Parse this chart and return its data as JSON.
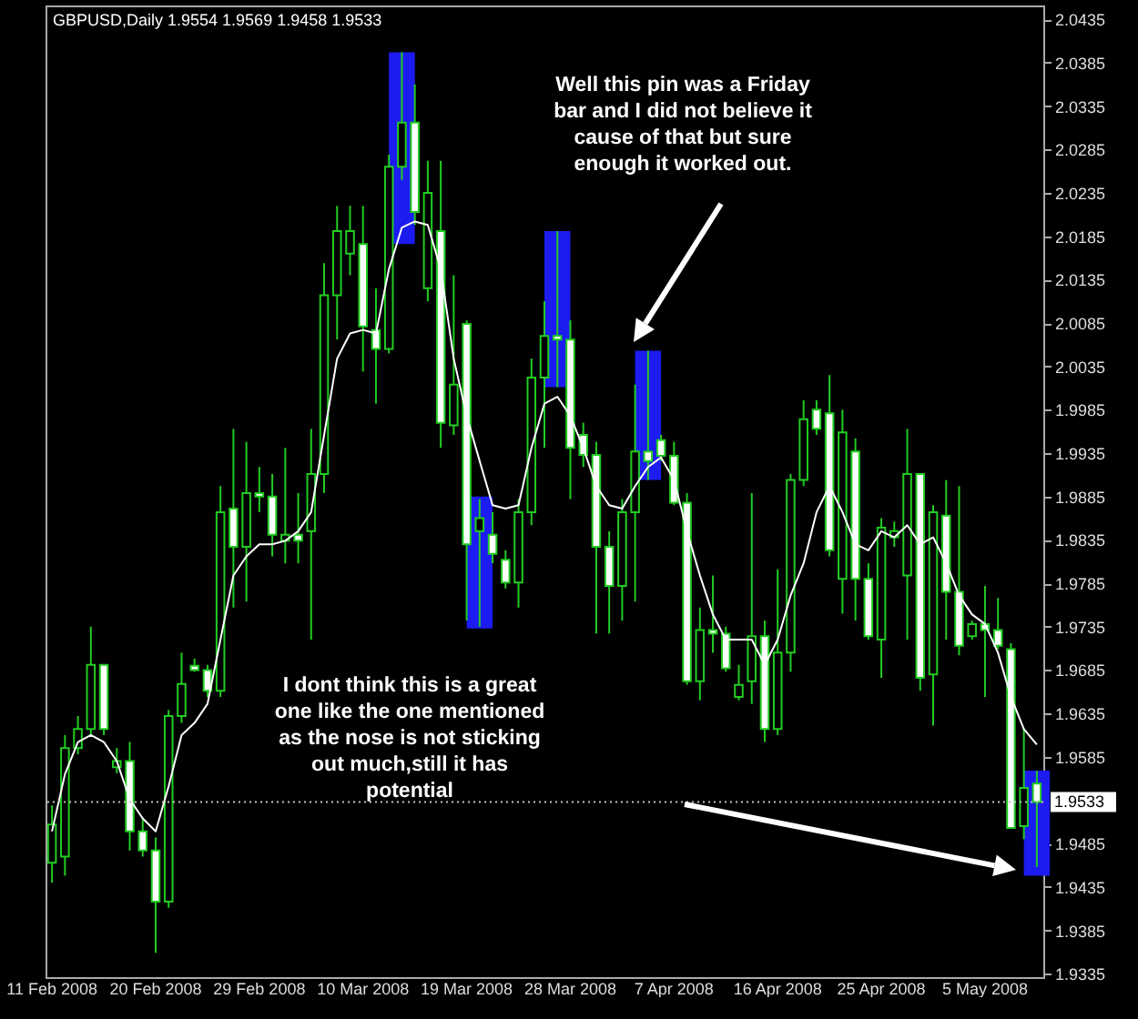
{
  "chart_data": {
    "type": "candlestick",
    "title": "GBPUSD,Daily  1.9554 1.9569 1.9458 1.9533",
    "categories": [
      "11 Feb 2008",
      null,
      null,
      null,
      null,
      null,
      null,
      null,
      "20 Feb 2008",
      null,
      null,
      null,
      null,
      null,
      null,
      null,
      "29 Feb 2008",
      null,
      null,
      null,
      null,
      null,
      null,
      null,
      "10 Mar 2008",
      null,
      null,
      null,
      null,
      null,
      null,
      null,
      "19 Mar 2008",
      null,
      null,
      null,
      null,
      null,
      null,
      null,
      "28 Mar 2008",
      null,
      null,
      null,
      null,
      null,
      null,
      null,
      "7 Apr 2008",
      null,
      null,
      null,
      null,
      null,
      null,
      null,
      "16 Apr 2008",
      null,
      null,
      null,
      null,
      null,
      null,
      null,
      "25 Apr 2008",
      null,
      null,
      null,
      null,
      null,
      null,
      null,
      "5 May 2008",
      null,
      null,
      null,
      null
    ],
    "ohlc": [
      [
        1.9463,
        1.9529,
        1.944,
        1.9507
      ],
      [
        1.947,
        1.961,
        1.9448,
        1.9595
      ],
      [
        1.9595,
        1.9632,
        1.9588,
        1.9617
      ],
      [
        1.9617,
        1.9735,
        1.961,
        1.9691
      ],
      [
        1.9691,
        1.9691,
        1.961,
        1.9617
      ],
      [
        1.9573,
        1.9595,
        1.9566,
        1.958
      ],
      [
        1.958,
        1.9602,
        1.9477,
        1.9499
      ],
      [
        1.9499,
        1.9514,
        1.947,
        1.9477
      ],
      [
        1.9477,
        1.9492,
        1.9359,
        1.9418
      ],
      [
        1.9418,
        1.9639,
        1.9411,
        1.9632
      ],
      [
        1.9632,
        1.9705,
        1.9624,
        1.9669
      ],
      [
        1.969,
        1.9698,
        1.9683,
        1.9685
      ],
      [
        1.9685,
        1.9691,
        1.9654,
        1.9661
      ],
      [
        1.9661,
        1.9897,
        1.9654,
        1.9867
      ],
      [
        1.9871,
        1.9963,
        1.9757,
        1.9827
      ],
      [
        1.9827,
        1.9948,
        1.9764,
        1.9889
      ],
      [
        1.9889,
        1.9919,
        1.9867,
        1.9885
      ],
      [
        1.9885,
        1.9911,
        1.9816,
        1.9841
      ],
      [
        1.9834,
        1.9941,
        1.9808,
        1.9841
      ],
      [
        1.9841,
        1.9889,
        1.9808,
        1.9834
      ],
      [
        1.9845,
        1.9963,
        1.972,
        1.9911
      ],
      [
        1.9911,
        2.0154,
        1.9889,
        2.0117
      ],
      [
        2.0117,
        2.022,
        2.0066,
        2.0191
      ],
      [
        2.0165,
        2.022,
        2.014,
        2.0191
      ],
      [
        2.0176,
        2.022,
        2.0029,
        2.0081
      ],
      [
        2.0077,
        2.0125,
        1.9992,
        2.0055
      ],
      [
        2.0055,
        2.0279,
        2.005,
        2.0265
      ],
      [
        2.0265,
        2.0397,
        2.025,
        2.0316
      ],
      [
        2.0316,
        2.036,
        2.0198,
        2.0213
      ],
      [
        2.0125,
        2.0272,
        2.011,
        2.0235
      ],
      [
        2.0191,
        2.0272,
        1.9941,
        1.997
      ],
      [
        1.9967,
        2.014,
        1.9956,
        2.0014
      ],
      [
        2.0084,
        2.0088,
        1.9742,
        1.983
      ],
      [
        1.9845,
        1.9882,
        1.9735,
        1.986
      ],
      [
        1.9841,
        1.9867,
        1.9808,
        1.9819
      ],
      [
        1.9812,
        1.9823,
        1.9779,
        1.9786
      ],
      [
        1.9786,
        1.9882,
        1.9757,
        1.9867
      ],
      [
        1.9867,
        2.0044,
        1.9852,
        2.0022
      ],
      [
        2.0022,
        2.011,
        1.9941,
        2.007
      ],
      [
        2.007,
        2.0191,
        2.0011,
        2.0066
      ],
      [
        2.0066,
        2.0088,
        1.9882,
        1.9941
      ],
      [
        1.9956,
        1.997,
        1.9919,
        1.9933
      ],
      [
        1.9933,
        1.9948,
        1.9727,
        1.9827
      ],
      [
        1.9827,
        1.9845,
        1.9727,
        1.9782
      ],
      [
        1.9782,
        1.9882,
        1.9742,
        1.9867
      ],
      [
        1.9867,
        2.0014,
        1.9764,
        1.9937
      ],
      [
        1.9937,
        2.0053,
        1.9904,
        1.9926
      ],
      [
        1.995,
        1.9956,
        1.9926,
        1.9932
      ],
      [
        1.9932,
        1.9948,
        1.9875,
        1.9878
      ],
      [
        1.9878,
        1.9889,
        1.9668,
        1.9672
      ],
      [
        1.9672,
        1.9757,
        1.965,
        1.9731
      ],
      [
        1.9731,
        1.9794,
        1.9705,
        1.9727
      ],
      [
        1.9727,
        1.9735,
        1.9683,
        1.9687
      ],
      [
        1.9654,
        1.9691,
        1.965,
        1.9668
      ],
      [
        1.9672,
        1.9889,
        1.9646,
        1.9724
      ],
      [
        1.9724,
        1.9742,
        1.9602,
        1.9617
      ],
      [
        1.9617,
        1.9801,
        1.961,
        1.9705
      ],
      [
        1.9705,
        1.9911,
        1.9683,
        1.9904
      ],
      [
        1.9904,
        1.9996,
        1.9897,
        1.9974
      ],
      [
        1.9985,
        1.9996,
        1.9956,
        1.9963
      ],
      [
        1.9981,
        2.0025,
        1.9816,
        1.9823
      ],
      [
        1.979,
        1.9985,
        1.975,
        1.9959
      ],
      [
        1.9937,
        1.9952,
        1.9742,
        1.979
      ],
      [
        1.979,
        1.9808,
        1.972,
        1.9724
      ],
      [
        1.972,
        1.986,
        1.9676,
        1.9849
      ],
      [
        1.9838,
        1.9856,
        1.9827,
        1.9845
      ],
      [
        1.9794,
        1.9963,
        1.972,
        1.9911
      ],
      [
        1.9911,
        1.9911,
        1.9661,
        1.9676
      ],
      [
        1.968,
        1.9875,
        1.9621,
        1.9867
      ],
      [
        1.9863,
        1.9904,
        1.972,
        1.9775
      ],
      [
        1.9775,
        1.9897,
        1.9702,
        1.9713
      ],
      [
        1.9724,
        1.9742,
        1.972,
        1.9738
      ],
      [
        1.9738,
        1.9782,
        1.9654,
        1.9731
      ],
      [
        1.9731,
        1.9768,
        1.9709,
        1.9713
      ],
      [
        1.9709,
        1.9716,
        1.9503,
        1.9503
      ],
      [
        1.9505,
        1.9618,
        1.949,
        1.9549
      ],
      [
        1.9554,
        1.9569,
        1.9458,
        1.9533
      ]
    ],
    "series": [
      {
        "type": "bar",
        "color": "#1c1cf0",
        "base": [
          null,
          null,
          null,
          null,
          null,
          null,
          null,
          null,
          null,
          null,
          null,
          null,
          null,
          null,
          null,
          null,
          null,
          null,
          null,
          null,
          null,
          null,
          null,
          null,
          null,
          null,
          null,
          2.0176,
          null,
          null,
          null,
          null,
          null,
          1.9733,
          null,
          null,
          null,
          null,
          null,
          2.0011,
          null,
          null,
          null,
          null,
          null,
          null,
          1.9904,
          null,
          null,
          null,
          null,
          null,
          null,
          null,
          null,
          null,
          null,
          null,
          null,
          null,
          null,
          null,
          null,
          null,
          null,
          null,
          null,
          null,
          null,
          null,
          null,
          null,
          null,
          null,
          null,
          null,
          1.9448
        ],
        "values": [
          null,
          null,
          null,
          null,
          null,
          null,
          null,
          null,
          null,
          null,
          null,
          null,
          null,
          null,
          null,
          null,
          null,
          null,
          null,
          null,
          null,
          null,
          null,
          null,
          null,
          null,
          null,
          0.0221,
          null,
          null,
          null,
          null,
          null,
          0.0152,
          null,
          null,
          null,
          null,
          null,
          0.018,
          null,
          null,
          null,
          null,
          null,
          null,
          0.0149,
          null,
          null,
          null,
          null,
          null,
          null,
          null,
          null,
          null,
          null,
          null,
          null,
          null,
          null,
          null,
          null,
          null,
          null,
          null,
          null,
          null,
          null,
          null,
          null,
          null,
          null,
          null,
          null,
          null,
          0.0121
        ]
      },
      {
        "type": "line",
        "color": "#ffffff",
        "values": [
          1.9499,
          1.9565,
          1.9602,
          1.961,
          1.9602,
          1.958,
          1.9536,
          1.9514,
          1.9499,
          1.9551,
          1.961,
          1.9624,
          1.9646,
          1.972,
          1.9794,
          1.9816,
          1.983,
          1.983,
          1.9834,
          1.9845,
          1.9867,
          1.9956,
          2.0044,
          2.0073,
          2.0077,
          2.0073,
          2.0147,
          2.0195,
          2.0202,
          2.0198,
          2.0147,
          2.0044,
          1.9978,
          1.9926,
          1.9875,
          1.9871,
          1.9875,
          1.9941,
          1.9992,
          2.0,
          1.9978,
          1.9941,
          1.9897,
          1.9875,
          1.9871,
          1.9897,
          1.9919,
          1.993,
          1.9904,
          1.9845,
          1.9794,
          1.9749,
          1.972,
          1.972,
          1.972,
          1.9691,
          1.972,
          1.9771,
          1.9808,
          1.9867,
          1.9897,
          1.9867,
          1.983,
          1.9823,
          1.9845,
          1.9838,
          1.9852,
          1.983,
          1.9838,
          1.9808,
          1.9771,
          1.9749,
          1.9738,
          1.9705,
          1.9654,
          1.9617,
          1.9599
        ]
      }
    ],
    "ylim": [
      1.9331,
      2.0451
    ],
    "yticks": [
      2.0435,
      2.0385,
      2.0335,
      2.0285,
      2.0235,
      2.0185,
      2.0135,
      2.0085,
      2.0035,
      1.9985,
      1.9935,
      1.9885,
      1.9835,
      1.9785,
      1.9735,
      1.9685,
      1.9635,
      1.9585,
      1.9485,
      1.9435,
      1.9385,
      1.9335
    ],
    "ref_lines": [
      {
        "axis": "y",
        "value": 1.9533,
        "label": "1.9533",
        "color": "#c0c0c0",
        "line_style": "dotted"
      }
    ],
    "annotations": [
      "Well this pin was a Friday bar and I did not believe it cause of that but sure enough it worked out.",
      "I dont think this is a great one like the one mentioned as the nose is not sticking out much,still it has potential"
    ],
    "grid": false
  }
}
